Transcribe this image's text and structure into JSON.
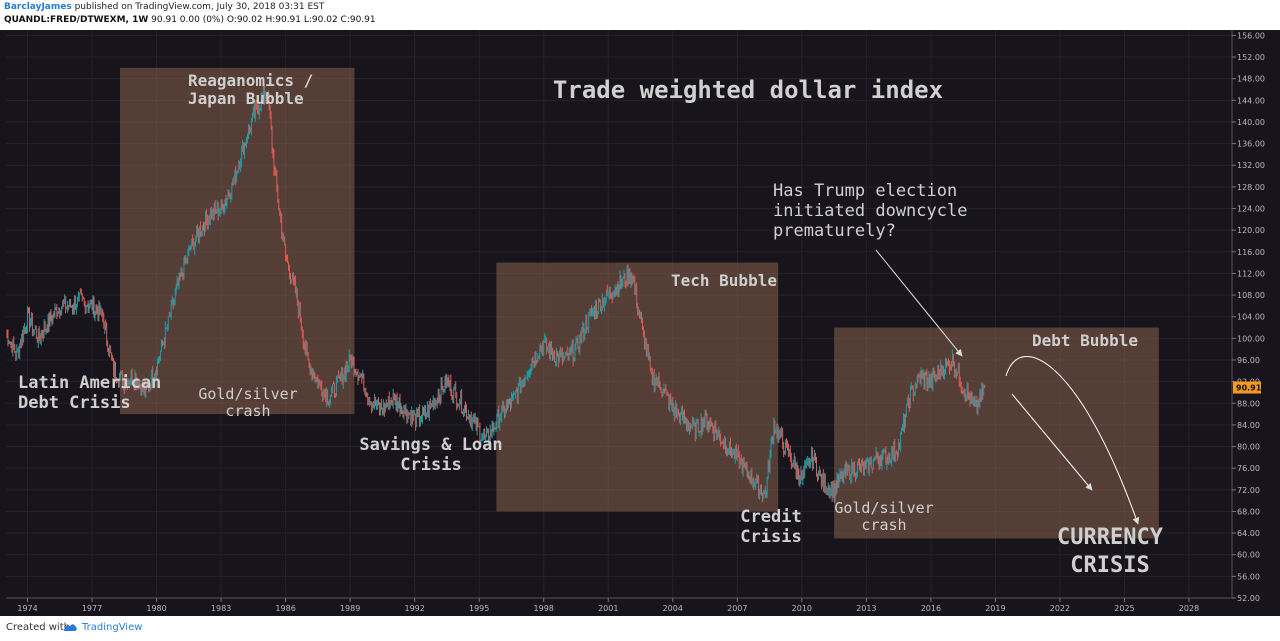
{
  "header": {
    "author": "BarclayJames",
    "published": "published on TradingView.com, July 30, 2018 03:31 EST",
    "symbol": "QUANDL:FRED/DTWEXM, 1W",
    "ohlc": "90.91 0.00 (0%) O:90.02 H:90.91 L:90.02 C:90.91"
  },
  "footer": {
    "created_with": "Created with",
    "brand": "TradingView"
  },
  "colors": {
    "background": "#17151b",
    "box_fill": "#a9775c",
    "up_candle": "#1f9da6",
    "down_candle": "#e05b57",
    "price_tag": "#f79a1f",
    "text": "#c8c8c8"
  },
  "chart_data": {
    "type": "candlestick",
    "title": "Trade weighted dollar index",
    "ylim": [
      52,
      157
    ],
    "yticks": [
      52,
      56,
      60,
      64,
      68,
      72,
      76,
      80,
      84,
      88,
      92,
      96,
      100,
      104,
      108,
      112,
      116,
      120,
      124,
      128,
      132,
      136,
      140,
      144,
      148,
      152,
      156
    ],
    "ytick_labels": [
      "52.00",
      "56.00",
      "60.00",
      "64.00",
      "68.00",
      "72.00",
      "76.00",
      "80.00",
      "84.00",
      "88.00",
      "92.00",
      "96.00",
      "100.00",
      "104.00",
      "108.00",
      "112.00",
      "116.00",
      "120.00",
      "124.00",
      "128.00",
      "132.00",
      "136.00",
      "140.00",
      "144.00",
      "148.00",
      "152.00",
      "156.00"
    ],
    "xlim": [
      1973,
      2030
    ],
    "xticks": [
      1974,
      1977,
      1980,
      1983,
      1986,
      1989,
      1992,
      1995,
      1998,
      2001,
      2004,
      2007,
      2010,
      2013,
      2016,
      2019,
      2022,
      2025,
      2028
    ],
    "last_price": "90.91",
    "series": [
      {
        "x": [
          1973.0,
          1973.5,
          1974.0,
          1974.5,
          1975.0,
          1975.5,
          1976.0,
          1976.5,
          1977.0,
          1977.5,
          1978.0,
          1978.5,
          1979.0,
          1979.5,
          1980.0,
          1980.5,
          1981.0,
          1981.5,
          1982.0,
          1982.5,
          1983.0,
          1983.5,
          1984.0,
          1984.5,
          1985.15,
          1985.5,
          1986.0,
          1986.5,
          1987.0,
          1987.5,
          1988.0,
          1988.5,
          1989.0,
          1989.5,
          1990.0,
          1990.5,
          1991.0,
          1991.5,
          1992.0,
          1992.5,
          1993.0,
          1993.5,
          1994.0,
          1994.5,
          1995.3,
          1995.6,
          1996.0,
          1996.5,
          1997.0,
          1997.5,
          1998.0,
          1998.5,
          1999.0,
          1999.5,
          2000.0,
          2000.5,
          2001.0,
          2001.5,
          2002.1,
          2002.5,
          2003.0,
          2003.5,
          2004.0,
          2004.5,
          2005.0,
          2005.5,
          2006.0,
          2006.5,
          2007.0,
          2007.5,
          2008.3,
          2008.7,
          2009.2,
          2009.6,
          2010.0,
          2010.5,
          2011.0,
          2011.5,
          2012.0,
          2012.5,
          2013.0,
          2013.5,
          2014.0,
          2014.5,
          2015.0,
          2015.5,
          2016.0,
          2016.5,
          2017.0,
          2017.5,
          2018.1,
          2018.5
        ],
        "y": [
          101,
          97,
          104,
          100,
          103,
          106,
          106,
          107,
          106,
          104,
          94,
          92,
          93,
          90,
          95,
          102,
          110,
          116,
          120,
          123,
          124,
          128,
          135,
          141,
          146,
          130,
          115,
          108,
          96,
          92,
          89,
          92,
          96,
          93,
          88,
          87,
          89,
          87,
          85,
          86,
          89,
          92,
          89,
          86,
          81,
          83,
          86,
          88,
          92,
          96,
          99,
          97,
          96,
          98,
          103,
          106,
          108,
          110,
          112,
          103,
          93,
          91,
          87,
          85,
          83,
          85,
          83,
          80,
          78,
          75,
          71,
          84,
          80,
          77,
          74,
          78,
          73,
          72,
          75,
          76,
          76,
          78,
          78,
          80,
          89,
          93,
          92,
          94,
          96,
          91,
          87,
          91
        ]
      }
    ],
    "annotations": [
      {
        "label": "Latin American Debt Crisis",
        "lines": [
          "Latin American",
          "Debt Crisis"
        ]
      },
      {
        "label": "Reaganomics / Japan Bubble",
        "lines": [
          "Reaganomics /",
          "Japan Bubble"
        ]
      },
      {
        "label": "Gold/silver crash",
        "lines": [
          "Gold/silver",
          "crash"
        ]
      },
      {
        "label": "Savings & Loan Crisis",
        "lines": [
          "Savings & Loan",
          "Crisis"
        ]
      },
      {
        "label": "Tech Bubble",
        "lines": [
          "Tech Bubble"
        ]
      },
      {
        "label": "Credit Crisis",
        "lines": [
          "Credit",
          "Crisis"
        ]
      },
      {
        "label": "Gold/silver crash",
        "lines": [
          "Gold/silver",
          "crash"
        ]
      },
      {
        "label": "Debt Bubble",
        "lines": [
          "Debt Bubble"
        ]
      },
      {
        "label": "Has Trump election initiated downcycle prematurely?",
        "lines": [
          "Has Trump election",
          "initiated downcycle",
          "prematurely?"
        ]
      },
      {
        "label": "CURRENCY CRISIS",
        "lines": [
          "CURRENCY",
          "CRISIS"
        ]
      }
    ]
  }
}
